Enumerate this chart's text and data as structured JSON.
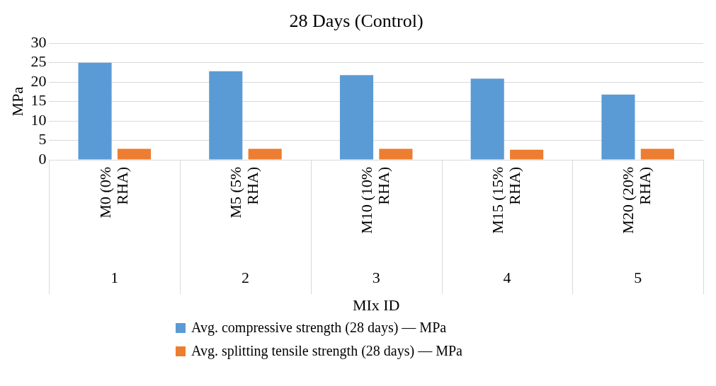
{
  "chart_data": {
    "type": "bar",
    "title": "28 Days (Control)",
    "xlabel": "MIx ID",
    "ylabel": "MPa",
    "categories": [
      "M0 (0% RHA)",
      "M5 (5% RHA)",
      "M10 (10% RHA)",
      "M15 (15% RHA)",
      "M20 (20% RHA)"
    ],
    "series": [
      {
        "name": "Avg. compressive strength  (28 days) — MPa",
        "color": "#5b9bd5",
        "values": [
          25,
          22.8,
          21.8,
          20.9,
          16.8
        ]
      },
      {
        "name": "Avg. splitting tensile strength (28 days) — MPa",
        "color": "#ed7d31",
        "values": [
          2.8,
          2.8,
          2.8,
          2.6,
          2.8
        ]
      }
    ],
    "annotations": [
      "1",
      "2",
      "3",
      "4",
      "5"
    ],
    "ylim": [
      0,
      30
    ],
    "yticks": [
      0,
      5,
      10,
      15,
      20,
      25,
      30
    ],
    "grid": "y",
    "legend": "bottom"
  }
}
